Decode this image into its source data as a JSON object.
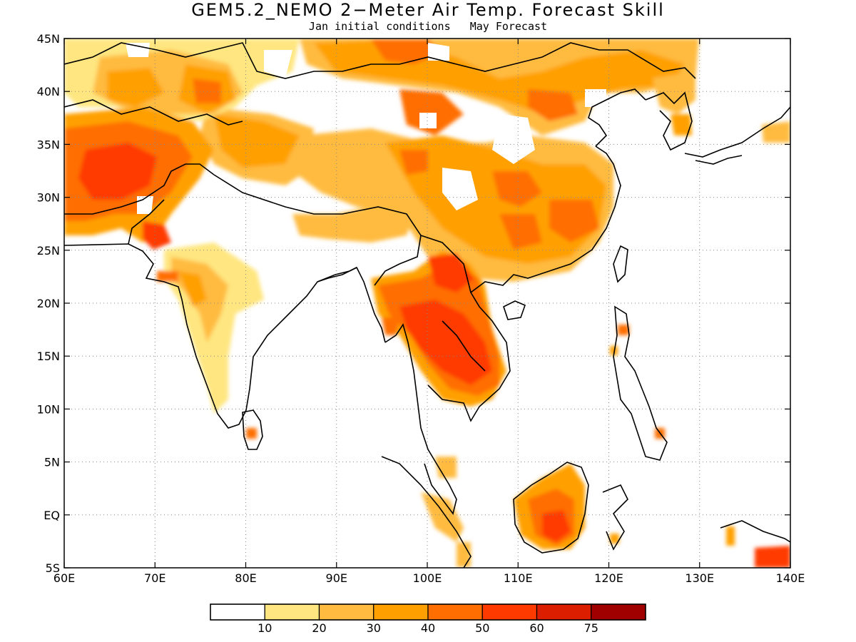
{
  "title": "GEM5.2_NEMO 2−Meter Air Temp. Forecast Skill",
  "subtitle": "Jan initial conditions   May Forecast",
  "map": {
    "lon_range": [
      60,
      140
    ],
    "lat_range": [
      -5,
      45
    ],
    "lon_ticks": [
      "60E",
      "70E",
      "80E",
      "90E",
      "100E",
      "110E",
      "120E",
      "130E",
      "140E"
    ],
    "lat_ticks": [
      "45N",
      "40N",
      "35N",
      "30N",
      "25N",
      "20N",
      "15N",
      "10N",
      "5N",
      "EQ",
      "5S"
    ],
    "grid": "dotted"
  },
  "colorbar": {
    "colors": [
      "#ffffff",
      "#ffe680",
      "#ffbb40",
      "#ffa000",
      "#ff6e00",
      "#ff3a00",
      "#dc1e00",
      "#a00000"
    ],
    "labels": [
      "10",
      "20",
      "30",
      "40",
      "50",
      "60",
      "75"
    ]
  }
}
